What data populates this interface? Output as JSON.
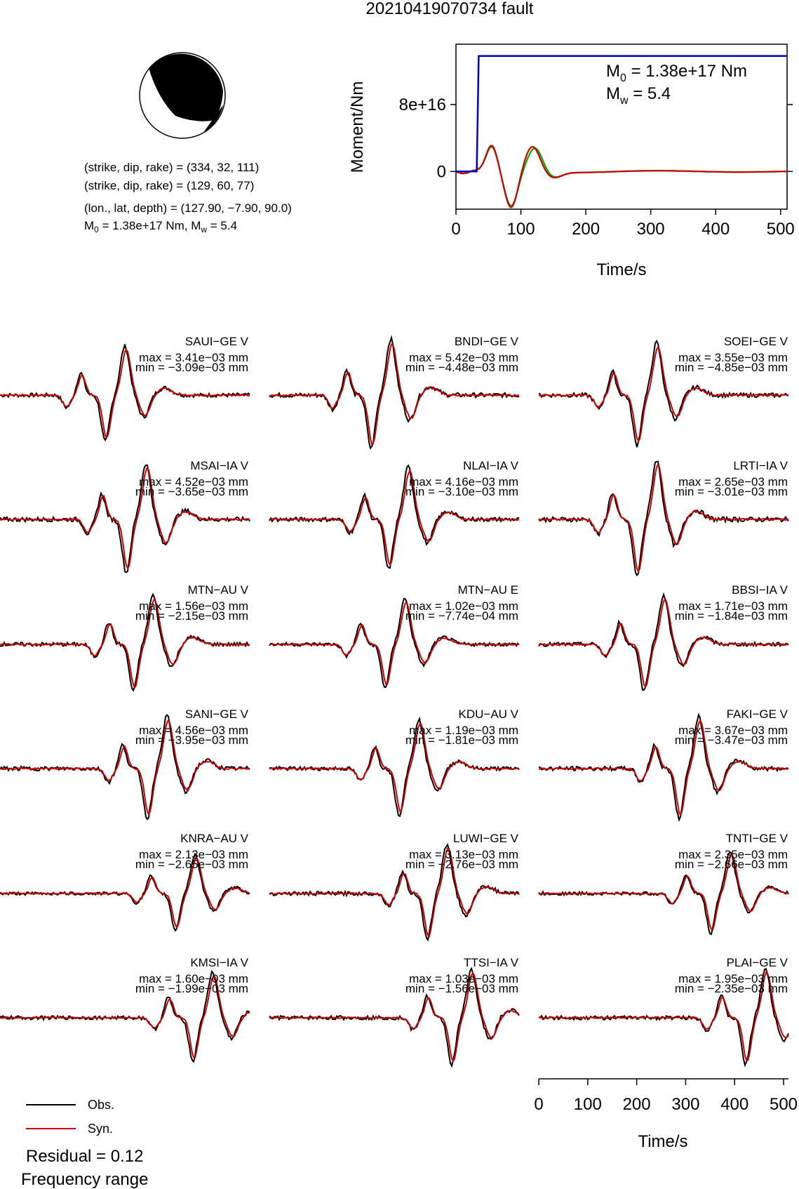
{
  "title": "20210419070734 fault",
  "focal_mechanism": {
    "line1": "(strike, dip, rake) = (334, 32, 111)",
    "line2": "(strike, dip, rake) = (129, 60, 77)",
    "line3": "(lon., lat, depth) = (127.90, −7.90, 90.0)",
    "m0_prefix": "M",
    "m0_sub": "0",
    "m0_rest": " = 1.38e+17 Nm, M",
    "mw_sub": "w",
    "mw_rest": " = 5.4"
  },
  "moment_panel": {
    "ylabel": "Moment/Nm",
    "xlabel": "Time/s",
    "m0_label_prefix": "M",
    "m0_label_sub": "0",
    "m0_label_rest": " = 1.38e+17 Nm",
    "mw_label_prefix": "M",
    "mw_label_sub": "w",
    "mw_label_rest": " = 5.4"
  },
  "legend": {
    "obs": "Obs.",
    "syn": "Syn.",
    "residual": "Residual = 0.12",
    "frequency": "Frequency range"
  },
  "waveform_xlabel": "Time/s",
  "chart_data": [
    {
      "type": "line",
      "title": "",
      "xlabel": "Time/s",
      "ylabel": "Moment/Nm",
      "xlim": [
        0,
        510
      ],
      "xticks": [
        0,
        100,
        200,
        300,
        400,
        500
      ],
      "ytick_labels": [
        "0",
        "8e+16"
      ],
      "yticks": [
        0,
        8e+16
      ],
      "ylim": [
        -4.5e+16,
        1.52e+17
      ],
      "colors": {
        "cumulative": "#0000cc",
        "obs": "#00aa00",
        "syn": "#cc0000"
      },
      "series": [
        {
          "values": [
            [
              0,
              0
            ],
            [
              32,
              0
            ],
            [
              35,
              1.38e+17
            ],
            [
              510,
              1.38e+17
            ]
          ]
        }
      ]
    },
    {
      "type": "line",
      "xlabel": "Time/s",
      "xlim": [
        0,
        510
      ],
      "xticks": [
        0,
        100,
        200,
        300,
        400,
        500
      ],
      "legend": [
        "Obs.",
        "Syn."
      ],
      "colors": {
        "obs": "#000000",
        "syn": "#cc0000"
      },
      "stations": [
        {
          "name": "SAUI−GE V",
          "max": "max = 3.41e−03 mm",
          "min": "min = −3.09e−03 mm"
        },
        {
          "name": "BNDI−GE V",
          "max": "max = 5.42e−03 mm",
          "min": "min = −4.48e−03 mm"
        },
        {
          "name": "SOEI−GE V",
          "max": "max = 3.55e−03 mm",
          "min": "min = −4.85e−03 mm"
        },
        {
          "name": "MSAI−IA V",
          "max": "max = 4.52e−03 mm",
          "min": "min = −3.65e−03 mm"
        },
        {
          "name": "NLAI−IA V",
          "max": "max = 4.16e−03 mm",
          "min": "min = −3.10e−03 mm"
        },
        {
          "name": "LRTI−IA V",
          "max": "max = 2.65e−03 mm",
          "min": "min = −3.01e−03 mm"
        },
        {
          "name": "MTN−AU V",
          "max": "max = 1.56e−03 mm",
          "min": "min = −2.15e−03 mm"
        },
        {
          "name": "MTN−AU E",
          "max": "max = 1.02e−03 mm",
          "min": "min = −7.74e−04 mm"
        },
        {
          "name": "BBSI−IA V",
          "max": "max = 1.71e−03 mm",
          "min": "min = −1.84e−03 mm"
        },
        {
          "name": "SANI−GE V",
          "max": "max = 4.56e−03 mm",
          "min": "min = −3.95e−03 mm"
        },
        {
          "name": "KDU−AU V",
          "max": "max = 1.19e−03 mm",
          "min": "min = −1.81e−03 mm"
        },
        {
          "name": "FAKI−GE V",
          "max": "max = 3.67e−03 mm",
          "min": "min = −3.47e−03 mm"
        },
        {
          "name": "KNRA−AU V",
          "max": "max = 2.13e−03 mm",
          "min": "min = −2.65e−03 mm"
        },
        {
          "name": "LUWI−GE V",
          "max": "max = 3.13e−03 mm",
          "min": "min = −2.76e−03 mm"
        },
        {
          "name": "TNTI−GE V",
          "max": "max = 2.35e−03 mm",
          "min": "min = −2.66e−03 mm"
        },
        {
          "name": "KMSI−IA V",
          "max": "max = 1.60e−03 mm",
          "min": "min = −1.99e−03 mm"
        },
        {
          "name": "TTSI−IA V",
          "max": "max = 1.03e−03 mm",
          "min": "min = −1.56e−03 mm"
        },
        {
          "name": "PLAI−GE V",
          "max": "max = 1.95e−03 mm",
          "min": "min = −2.35e−03 mm"
        }
      ]
    }
  ]
}
